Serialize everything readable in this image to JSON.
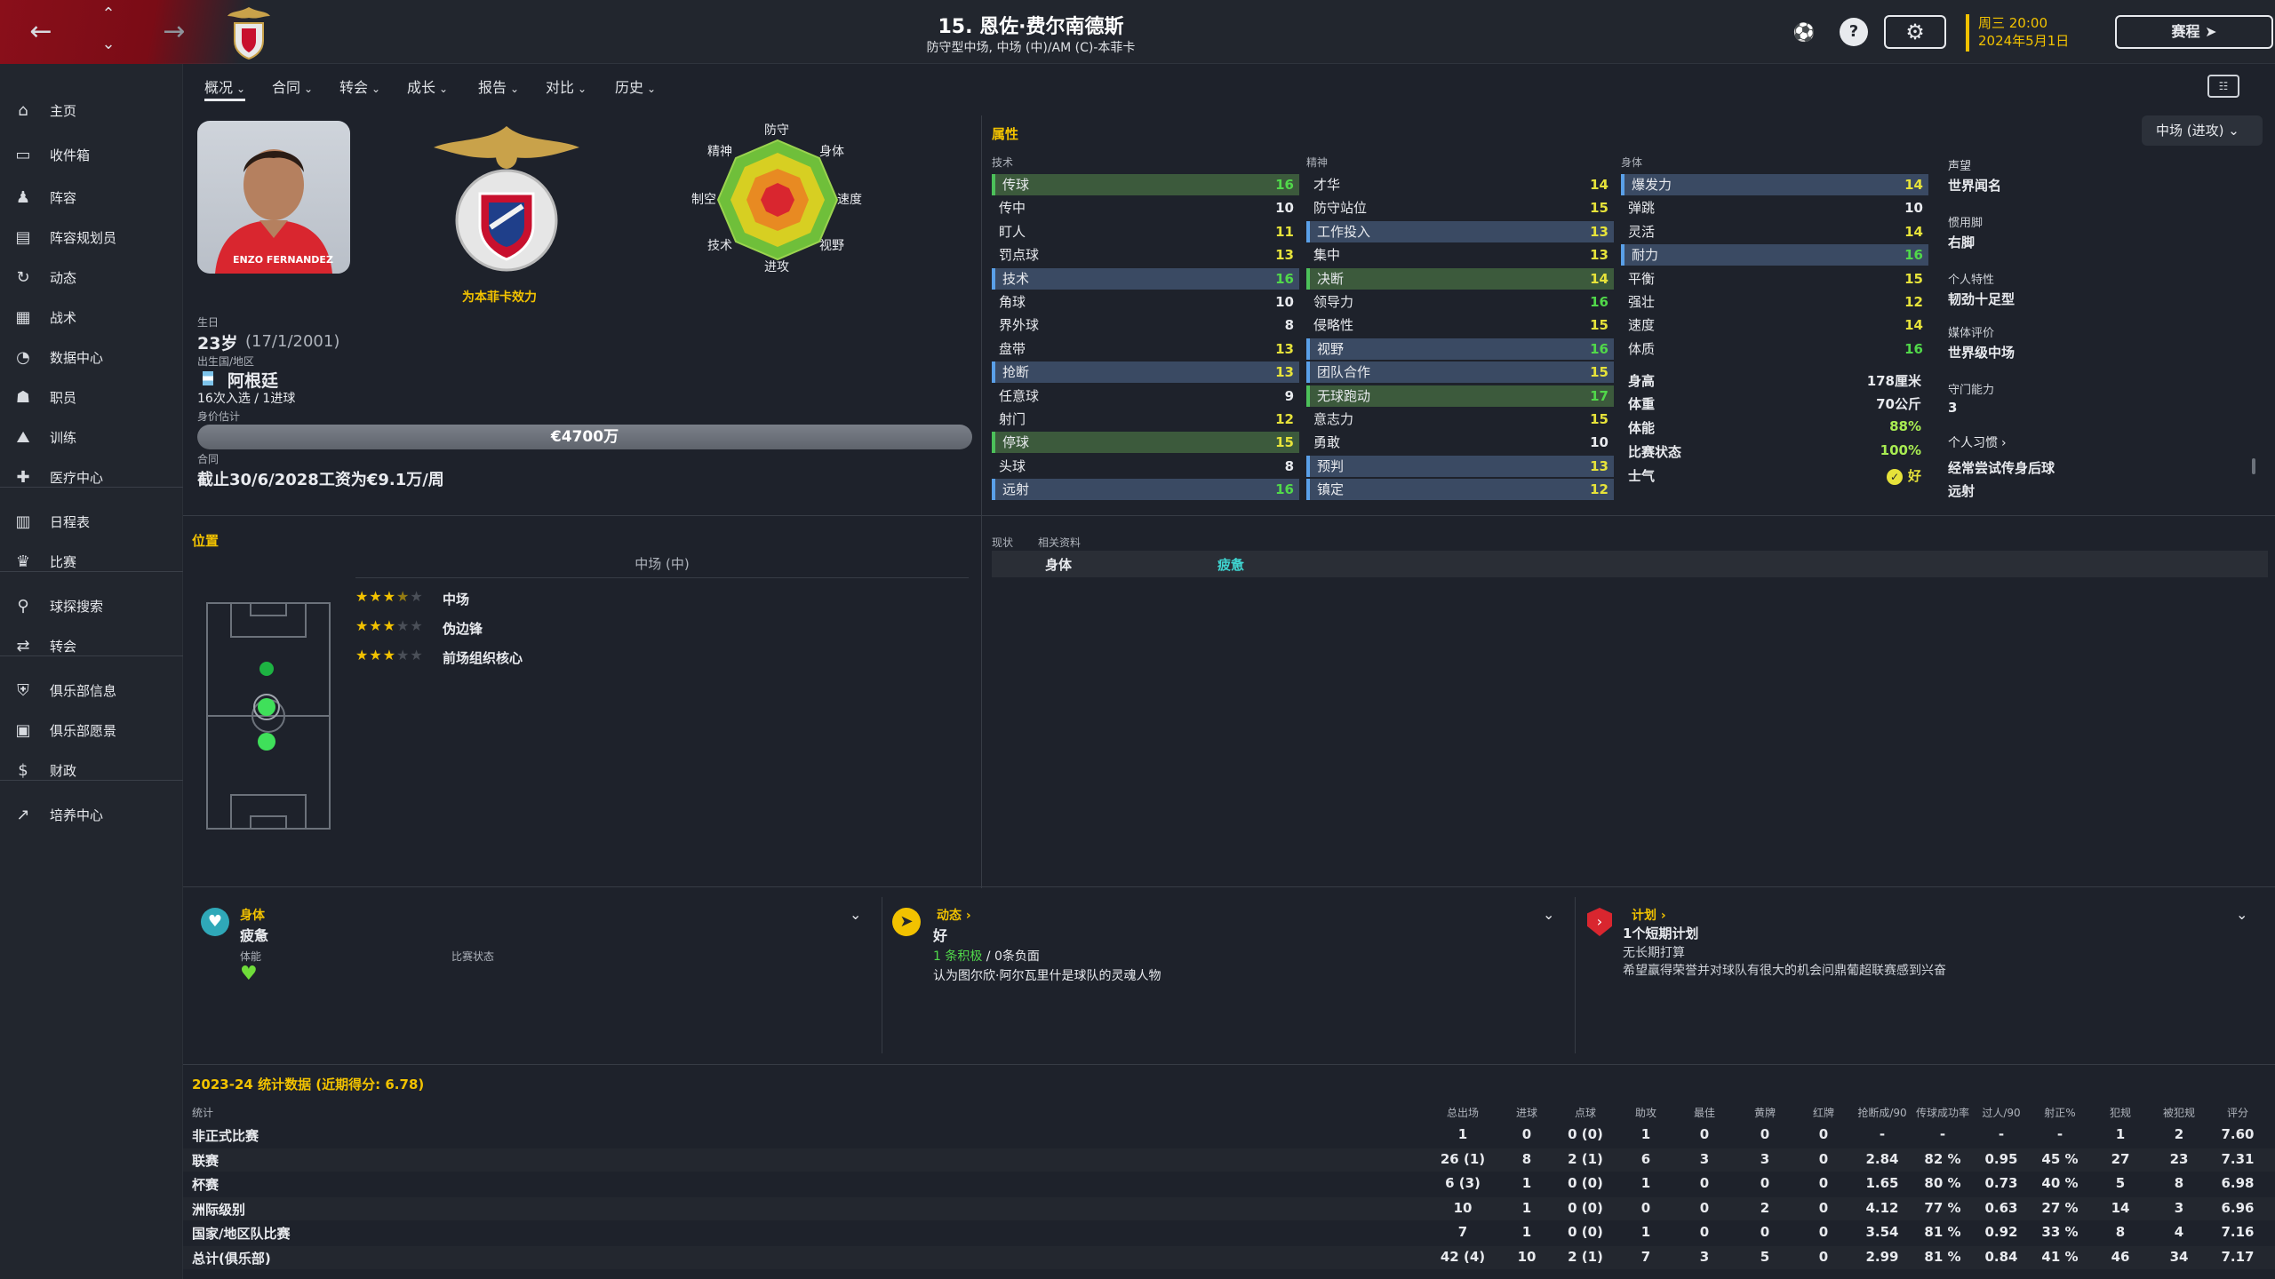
{
  "header": {
    "player_title": "15. 恩佐·费尔南德斯",
    "player_subtitle": "防守型中场, 中场 (中)/AM (C)-本菲卡",
    "date_day": "周三 20:00",
    "date_date": "2024年5月1日",
    "continue_label": "赛程",
    "settings_icon": "gear-icon",
    "help_icon": "question-icon"
  },
  "sidebar": {
    "items": [
      {
        "label": "主页",
        "icon": "home-icon"
      },
      {
        "label": "收件箱",
        "icon": "inbox-icon"
      },
      {
        "label": "阵容",
        "icon": "squad-icon"
      },
      {
        "label": "阵容规划员",
        "icon": "planner-icon"
      },
      {
        "label": "动态",
        "icon": "dynamics-icon"
      },
      {
        "label": "战术",
        "icon": "tactics-icon"
      },
      {
        "label": "数据中心",
        "icon": "data-icon"
      },
      {
        "label": "职员",
        "icon": "staff-icon"
      },
      {
        "label": "训练",
        "icon": "training-icon"
      },
      {
        "label": "医疗中心",
        "icon": "medical-icon"
      },
      {
        "label": "日程表",
        "icon": "calendar-icon"
      },
      {
        "label": "比赛",
        "icon": "trophy-icon"
      },
      {
        "label": "球探搜索",
        "icon": "scout-icon"
      },
      {
        "label": "转会",
        "icon": "transfer-icon"
      },
      {
        "label": "俱乐部信息",
        "icon": "shield-icon"
      },
      {
        "label": "俱乐部愿景",
        "icon": "vision-icon"
      },
      {
        "label": "财政",
        "icon": "finance-icon"
      },
      {
        "label": "培养中心",
        "icon": "development-icon"
      }
    ]
  },
  "subnav": {
    "tabs": [
      "概况",
      "合同",
      "转会",
      "成长",
      "报告",
      "对比",
      "历史"
    ]
  },
  "profile": {
    "player_photo_caption": "ENZO FERNANDEZ",
    "club_label": "为本菲卡效力",
    "birth_label": "生日",
    "age": "23岁",
    "birthdate": "(17/1/2001)",
    "nation_label": "出生国/地区",
    "nation": "阿根廷",
    "caps": "16次入选 / 1进球",
    "value_label": "身价估计",
    "value": "€4700万",
    "contract_label": "合同",
    "contract": "截止30/6/2028工资为€9.1万/周"
  },
  "radar": {
    "labels": {
      "top": "防守",
      "topright": "身体",
      "right": "速度",
      "bottomright": "视野",
      "bottom": "进攻",
      "bottomleft": "技术",
      "left": "制空",
      "topleft": "精神"
    }
  },
  "attributes": {
    "title": "属性",
    "role_selector": "中场 (进攻)",
    "technical_header": "技术",
    "mental_header": "精神",
    "physical_header": "身体",
    "technical": [
      {
        "name": "传球",
        "value": "16",
        "hl": "green",
        "bar": "g"
      },
      {
        "name": "传中",
        "value": "10",
        "hl": "",
        "bar": ""
      },
      {
        "name": "盯人",
        "value": "11",
        "hl": "",
        "bar": ""
      },
      {
        "name": "罚点球",
        "value": "13",
        "hl": "",
        "bar": ""
      },
      {
        "name": "技术",
        "value": "16",
        "hl": "blue",
        "bar": "b"
      },
      {
        "name": "角球",
        "value": "10",
        "hl": "",
        "bar": ""
      },
      {
        "name": "界外球",
        "value": "8",
        "hl": "",
        "bar": ""
      },
      {
        "name": "盘带",
        "value": "13",
        "hl": "",
        "bar": ""
      },
      {
        "name": "抢断",
        "value": "13",
        "hl": "blue",
        "bar": "b"
      },
      {
        "name": "任意球",
        "value": "9",
        "hl": "",
        "bar": ""
      },
      {
        "name": "射门",
        "value": "12",
        "hl": "",
        "bar": ""
      },
      {
        "name": "停球",
        "value": "15",
        "hl": "green",
        "bar": "g"
      },
      {
        "name": "头球",
        "value": "8",
        "hl": "",
        "bar": ""
      },
      {
        "name": "远射",
        "value": "16",
        "hl": "blue",
        "bar": "b"
      }
    ],
    "mental": [
      {
        "name": "才华",
        "value": "14",
        "hl": "",
        "bar": ""
      },
      {
        "name": "防守站位",
        "value": "15",
        "hl": "",
        "bar": ""
      },
      {
        "name": "工作投入",
        "value": "13",
        "hl": "blue",
        "bar": "b"
      },
      {
        "name": "集中",
        "value": "13",
        "hl": "",
        "bar": ""
      },
      {
        "name": "决断",
        "value": "14",
        "hl": "green",
        "bar": "g"
      },
      {
        "name": "领导力",
        "value": "16",
        "hl": "",
        "bar": ""
      },
      {
        "name": "侵略性",
        "value": "15",
        "hl": "",
        "bar": ""
      },
      {
        "name": "视野",
        "value": "16",
        "hl": "blue",
        "bar": "b"
      },
      {
        "name": "团队合作",
        "value": "15",
        "hl": "blue",
        "bar": "b"
      },
      {
        "name": "无球跑动",
        "value": "17",
        "hl": "green",
        "bar": "g"
      },
      {
        "name": "意志力",
        "value": "15",
        "hl": "",
        "bar": ""
      },
      {
        "name": "勇敢",
        "value": "10",
        "hl": "",
        "bar": ""
      },
      {
        "name": "预判",
        "value": "13",
        "hl": "blue",
        "bar": "b"
      },
      {
        "name": "镇定",
        "value": "12",
        "hl": "blue",
        "bar": "b"
      }
    ],
    "physical": [
      {
        "name": "爆发力",
        "value": "14",
        "hl": "blue",
        "bar": "b"
      },
      {
        "name": "弹跳",
        "value": "10",
        "hl": "",
        "bar": ""
      },
      {
        "name": "灵活",
        "value": "14",
        "hl": "",
        "bar": ""
      },
      {
        "name": "耐力",
        "value": "16",
        "hl": "blue",
        "bar": "b"
      },
      {
        "name": "平衡",
        "value": "15",
        "hl": "",
        "bar": ""
      },
      {
        "name": "强壮",
        "value": "12",
        "hl": "",
        "bar": ""
      },
      {
        "name": "速度",
        "value": "14",
        "hl": "",
        "bar": ""
      },
      {
        "name": "体质",
        "value": "16",
        "hl": "",
        "bar": ""
      }
    ],
    "info": [
      {
        "name": "身高",
        "value": "178厘米"
      },
      {
        "name": "体重",
        "value": "70公斤"
      },
      {
        "name": "体能",
        "value": "88%"
      },
      {
        "name": "比赛状态",
        "value": "100%"
      },
      {
        "name": "士气",
        "value": "好"
      }
    ],
    "side": [
      {
        "label": "声望",
        "value": "世界闻名"
      },
      {
        "label": "惯用脚",
        "value": "右脚"
      },
      {
        "label": "个人特性",
        "value": "韧劲十足型"
      },
      {
        "label": "媒体评价",
        "value": "世界级中场"
      },
      {
        "label": "守门能力",
        "value": "3"
      }
    ],
    "habits_label": "个人习惯",
    "habits": [
      "经常尝试传身后球",
      "远射"
    ]
  },
  "positions": {
    "title": "位置",
    "subtitle": "中场 (中)",
    "list": [
      {
        "name": "中场",
        "stars": 3.5
      },
      {
        "name": "伪边锋",
        "stars": 3
      },
      {
        "name": "前场组织核心",
        "stars": 3
      }
    ]
  },
  "status_panel": {
    "tab1": "现状",
    "tab2": "相关资料",
    "row_label": "身体",
    "row_value": "疲惫"
  },
  "cards": {
    "physical": {
      "title": "身体",
      "value": "疲惫",
      "sub1": "体能",
      "sub2": "比赛状态"
    },
    "dynamics": {
      "title": "动态",
      "value": "好",
      "line1_pos": "1 条积极",
      "line1_rest": " / 0条负面",
      "line2": "认为图尔欣·阿尔瓦里什是球队的灵魂人物"
    },
    "plans": {
      "title": "计划",
      "line1": "1个短期计划",
      "line2": "无长期打算",
      "line3": "希望赢得荣誉并对球队有很大的机会问鼎葡超联赛感到兴奋"
    }
  },
  "stats": {
    "title": "2023-24 统计数据 (近期得分: 6.78)",
    "row_header": "统计",
    "columns": [
      "总出场",
      "进球",
      "点球",
      "助攻",
      "最佳",
      "黄牌",
      "红牌",
      "抢断成/90",
      "传球成功率",
      "过人/90",
      "射正%",
      "犯规",
      "被犯规",
      "评分"
    ],
    "rows": [
      {
        "label": "非正式比赛",
        "cells": [
          "1",
          "0",
          "0 (0)",
          "1",
          "0",
          "0",
          "0",
          "-",
          "-",
          "-",
          "-",
          "1",
          "2",
          "7.60"
        ]
      },
      {
        "label": "联赛",
        "cells": [
          "26 (1)",
          "8",
          "2 (1)",
          "6",
          "3",
          "3",
          "0",
          "2.84",
          "82 %",
          "0.95",
          "45 %",
          "27",
          "23",
          "7.31"
        ]
      },
      {
        "label": "杯赛",
        "cells": [
          "6 (3)",
          "1",
          "0 (0)",
          "1",
          "0",
          "0",
          "0",
          "1.65",
          "80 %",
          "0.73",
          "40 %",
          "5",
          "8",
          "6.98"
        ]
      },
      {
        "label": "洲际级别",
        "cells": [
          "10",
          "1",
          "0 (0)",
          "0",
          "0",
          "2",
          "0",
          "4.12",
          "77 %",
          "0.63",
          "27 %",
          "14",
          "3",
          "6.96"
        ]
      },
      {
        "label": "国家/地区队比赛",
        "cells": [
          "7",
          "1",
          "0 (0)",
          "1",
          "0",
          "0",
          "0",
          "3.54",
          "81 %",
          "0.92",
          "33 %",
          "8",
          "4",
          "7.16"
        ]
      },
      {
        "label": "总计(俱乐部)",
        "cells": [
          "42 (4)",
          "10",
          "2 (1)",
          "7",
          "3",
          "5",
          "0",
          "2.99",
          "81 %",
          "0.84",
          "41 %",
          "46",
          "34",
          "7.17"
        ]
      }
    ]
  },
  "colors": {
    "accent": "#f2c200",
    "club_red": "#8a0f1a",
    "positive": "#51d84a",
    "highlight_blue": "#3a4a63",
    "highlight_green": "#3c5a3c"
  }
}
